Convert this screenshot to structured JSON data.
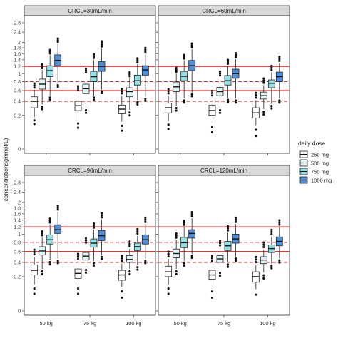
{
  "chart_data": {
    "type": "box",
    "ylabel": "concentrations(mmol/L)",
    "categories": [
      "50 kg",
      "75 kg",
      "100 kg"
    ],
    "y_ticks": [
      0,
      0.2,
      0.4,
      0.6,
      0.8,
      1,
      1.2,
      1.4,
      1.6,
      1.8,
      2,
      2.4,
      2.8
    ],
    "y_tick_labels": [
      "0",
      "0.2",
      "0.4",
      "0.6",
      "0.8",
      "1",
      "1.2",
      "1.4",
      "1.6",
      "1.8",
      "2",
      "2.4",
      "2.8"
    ],
    "y_scale": "square-root",
    "ylim": [
      0,
      2.8
    ],
    "grid": false,
    "reference_lines": [
      {
        "y": 1.2,
        "style": "solid",
        "color": "#e03030"
      },
      {
        "y": 0.6,
        "style": "solid",
        "color": "#e03030"
      },
      {
        "y": 0.8,
        "style": "dashed",
        "color": "#c43a3a"
      },
      {
        "y": 0.4,
        "style": "dashed",
        "color": "#c43a3a"
      }
    ],
    "legend": {
      "title": "daily dose",
      "placement": "right",
      "entries": [
        {
          "label": "250 mg",
          "color": "#ffffff"
        },
        {
          "label": "500 mg",
          "color": "#e0f5f4"
        },
        {
          "label": "750 mg",
          "color": "#93e0e6"
        },
        {
          "label": "1000 mg",
          "color": "#4e8fd8"
        }
      ]
    },
    "panels": [
      {
        "title": "CRCL=30mL/min",
        "boxes": [
          [
            [
              0.18,
              0.3,
              0.4,
              0.48,
              0.62
            ],
            [
              0.35,
              0.63,
              0.74,
              0.86,
              1.1
            ],
            [
              0.5,
              0.92,
              1.08,
              1.22,
              1.55
            ],
            [
              0.75,
              1.22,
              1.38,
              1.56,
              1.95
            ]
          ],
          [
            [
              0.15,
              0.26,
              0.33,
              0.4,
              0.56
            ],
            [
              0.3,
              0.54,
              0.64,
              0.74,
              0.98
            ],
            [
              0.5,
              0.8,
              0.92,
              1.06,
              1.4
            ],
            [
              0.62,
              1.06,
              1.2,
              1.34,
              1.78
            ]
          ],
          [
            [
              0.13,
              0.22,
              0.28,
              0.34,
              0.5
            ],
            [
              0.27,
              0.48,
              0.58,
              0.66,
              0.88
            ],
            [
              0.42,
              0.72,
              0.82,
              0.96,
              1.27
            ],
            [
              0.48,
              0.95,
              1.1,
              1.22,
              1.6
            ]
          ]
        ]
      },
      {
        "title": "CRCL=60mL/min",
        "boxes": [
          [
            [
              0.14,
              0.23,
              0.3,
              0.37,
              0.5
            ],
            [
              0.33,
              0.58,
              0.68,
              0.79,
              1.0
            ],
            [
              0.45,
              0.82,
              0.93,
              1.06,
              1.38
            ],
            [
              0.56,
              1.08,
              1.22,
              1.38,
              1.76
            ]
          ],
          [
            [
              0.12,
              0.2,
              0.26,
              0.34,
              0.46
            ],
            [
              0.3,
              0.5,
              0.58,
              0.67,
              0.9
            ],
            [
              0.46,
              0.72,
              0.82,
              0.95,
              1.22
            ],
            [
              0.45,
              0.88,
              1.0,
              1.12,
              1.42
            ]
          ],
          [
            [
              0.1,
              0.17,
              0.23,
              0.3,
              0.42
            ],
            [
              0.28,
              0.44,
              0.5,
              0.57,
              0.72
            ],
            [
              0.36,
              0.66,
              0.76,
              0.84,
              1.04
            ],
            [
              0.45,
              0.8,
              0.92,
              1.04,
              1.3
            ]
          ]
        ]
      },
      {
        "title": "CRCL=90mL/min",
        "boxes": [
          [
            [
              0.12,
              0.22,
              0.28,
              0.36,
              0.5
            ],
            [
              0.3,
              0.53,
              0.61,
              0.7,
              0.92
            ],
            [
              0.44,
              0.76,
              0.86,
              0.98,
              1.27
            ],
            [
              0.46,
              1.02,
              1.12,
              1.26,
              1.68
            ]
          ],
          [
            [
              0.12,
              0.18,
              0.24,
              0.3,
              0.42
            ],
            [
              0.32,
              0.44,
              0.51,
              0.58,
              0.74
            ],
            [
              0.42,
              0.69,
              0.78,
              0.88,
              1.12
            ],
            [
              0.53,
              0.84,
              0.96,
              1.1,
              1.42
            ]
          ],
          [
            [
              0.1,
              0.16,
              0.22,
              0.28,
              0.38
            ],
            [
              0.3,
              0.4,
              0.45,
              0.52,
              0.66
            ],
            [
              0.36,
              0.62,
              0.7,
              0.78,
              0.96
            ],
            [
              0.46,
              0.76,
              0.86,
              0.98,
              1.28
            ]
          ]
        ]
      },
      {
        "title": "CRCL=120mL/min",
        "boxes": [
          [
            [
              0.12,
              0.2,
              0.26,
              0.34,
              0.46
            ],
            [
              0.3,
              0.48,
              0.56,
              0.65,
              0.86
            ],
            [
              0.42,
              0.68,
              0.79,
              0.92,
              1.2
            ],
            [
              0.55,
              0.9,
              1.02,
              1.12,
              1.46
            ]
          ],
          [
            [
              0.1,
              0.17,
              0.22,
              0.28,
              0.38
            ],
            [
              0.28,
              0.4,
              0.46,
              0.52,
              0.68
            ],
            [
              0.4,
              0.62,
              0.72,
              0.82,
              1.04
            ],
            [
              0.5,
              0.78,
              0.88,
              1.0,
              1.28
            ]
          ],
          [
            [
              0.08,
              0.14,
              0.2,
              0.26,
              0.36
            ],
            [
              0.25,
              0.38,
              0.44,
              0.5,
              0.64
            ],
            [
              0.38,
              0.58,
              0.66,
              0.74,
              0.94
            ],
            [
              0.47,
              0.72,
              0.82,
              0.93,
              1.2
            ]
          ]
        ]
      }
    ]
  }
}
